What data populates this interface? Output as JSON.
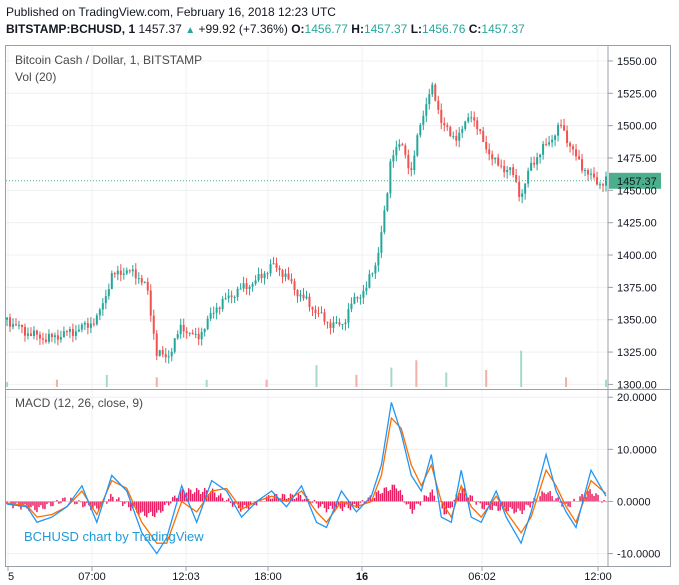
{
  "header": {
    "published": "Published on TradingView.com, February 16, 2018 12:23 UTC",
    "symbol": "BITSTAMP:BCHUSD, 1",
    "last": "1457.37",
    "change_arrow": "▲",
    "change": "+99.92 (+7.36%)",
    "o_label": "O:",
    "o_value": "1456.77",
    "h_label": "H:",
    "h_value": "1457.37",
    "l_label": "L:",
    "l_value": "1456.76",
    "c_label": "C:",
    "c_value": "1457.37"
  },
  "colors": {
    "up": "#26a69a",
    "down": "#ef5350",
    "volume_up": "#a8d8c8",
    "volume_down": "#f0b0a8",
    "volume_ma": "#ff9800",
    "macd_line": "#2196f3",
    "signal_line": "#ff6d00",
    "histogram": "#e91e63",
    "last_price_tag": "#4caf8c",
    "watermark": "#1e9bd8"
  },
  "chart_data": [
    {
      "type": "candlestick",
      "title": "Bitcoin Cash / Dollar, 1, BITSTAMP",
      "subtitle": "Vol (20)",
      "ylim": [
        1298,
        1560
      ],
      "y_ticks": [
        "1550.00",
        "1525.00",
        "1500.00",
        "1475.00",
        "1450.00",
        "1425.00",
        "1400.00",
        "1375.00",
        "1350.00",
        "1325.00",
        "1300.00"
      ],
      "x_ticks": [
        "5",
        "07:00",
        "12:03",
        "18:00",
        "16",
        "06:02",
        "12:00"
      ],
      "last_price_label": "1457.37",
      "last_price": 1457.37,
      "series": [
        {
          "name": "Price",
          "x": [
            0,
            20,
            40,
            70,
            90,
            105,
            115,
            130,
            140,
            150,
            160,
            175,
            190,
            210,
            230,
            250,
            265,
            275,
            290,
            305,
            320,
            335,
            345,
            360,
            370,
            380,
            385,
            395,
            405,
            415,
            425,
            435,
            445,
            455,
            465,
            475,
            490,
            505,
            515,
            525,
            535,
            545,
            555,
            570,
            585,
            595,
            600
          ],
          "values": [
            1350,
            1340,
            1335,
            1342,
            1350,
            1383,
            1388,
            1385,
            1375,
            1325,
            1320,
            1345,
            1335,
            1360,
            1372,
            1380,
            1392,
            1388,
            1372,
            1360,
            1348,
            1345,
            1362,
            1375,
            1395,
            1440,
            1480,
            1485,
            1465,
            1505,
            1530,
            1505,
            1490,
            1495,
            1510,
            1490,
            1470,
            1465,
            1445,
            1470,
            1480,
            1490,
            1500,
            1475,
            1460,
            1455,
            1457
          ]
        }
      ],
      "volume": {
        "x": [
          0,
          50,
          100,
          150,
          200,
          260,
          310,
          350,
          385,
          410,
          440,
          480,
          515,
          560,
          600
        ],
        "values": [
          2,
          3,
          5,
          4,
          3,
          3,
          9,
          5,
          8,
          11,
          6,
          7,
          15,
          4,
          3
        ],
        "ylim": [
          0,
          40
        ]
      }
    },
    {
      "type": "line",
      "title": "MACD (12, 26, close, 9)",
      "ylim": [
        -12,
        21
      ],
      "y_ticks": [
        "20.0000",
        "10.0000",
        "0.0000",
        "-10.0000"
      ],
      "series": [
        {
          "name": "MACD",
          "x": [
            0,
            20,
            30,
            45,
            60,
            75,
            90,
            105,
            120,
            135,
            150,
            160,
            175,
            190,
            205,
            220,
            235,
            250,
            265,
            280,
            295,
            310,
            320,
            335,
            350,
            365,
            375,
            385,
            395,
            405,
            415,
            425,
            435,
            445,
            455,
            465,
            475,
            490,
            500,
            515,
            525,
            540,
            550,
            560,
            570,
            585,
            600
          ],
          "values": [
            -0.5,
            -1,
            -4,
            -3,
            -1,
            3,
            -4,
            5,
            2,
            -6,
            -10,
            -7,
            3,
            -4,
            4,
            2,
            -3,
            0,
            2,
            -1,
            3,
            -4,
            -5,
            2,
            -2,
            1,
            7,
            19,
            13,
            5,
            2,
            9,
            -3,
            -4,
            6,
            -3,
            -4,
            2,
            -3,
            -8,
            -2,
            9,
            2,
            -2,
            -5,
            6,
            1
          ]
        },
        {
          "name": "Signal",
          "x": [
            0,
            20,
            30,
            45,
            60,
            75,
            90,
            105,
            120,
            135,
            150,
            160,
            175,
            190,
            205,
            220,
            235,
            250,
            265,
            280,
            295,
            310,
            320,
            335,
            350,
            365,
            375,
            385,
            395,
            405,
            415,
            425,
            435,
            445,
            455,
            465,
            475,
            490,
            500,
            515,
            525,
            540,
            550,
            560,
            570,
            585,
            600
          ],
          "values": [
            -0.3,
            -0.8,
            -3,
            -2.5,
            -1,
            2,
            -2.5,
            4,
            2.5,
            -4,
            -8,
            -8,
            0,
            -2,
            2,
            2.5,
            -1.5,
            0,
            1,
            0,
            2,
            -2,
            -4,
            0,
            -1,
            0,
            5,
            16,
            14,
            7,
            3,
            7,
            0,
            -3,
            3,
            -1,
            -3,
            1,
            -2,
            -6,
            -3,
            6,
            3,
            -1,
            -4,
            4,
            1.5
          ]
        }
      ],
      "histogram": {
        "x": [
          0,
          30,
          60,
          90,
          105,
          135,
          150,
          175,
          205,
          235,
          265,
          295,
          320,
          350,
          375,
          390,
          405,
          425,
          440,
          455,
          475,
          500,
          515,
          540,
          560,
          585,
          600
        ],
        "values": [
          -0.5,
          -1.5,
          0.5,
          -1.5,
          1,
          -2.5,
          -2.5,
          2,
          2,
          -1.5,
          1,
          1,
          -1.5,
          -1,
          2,
          3,
          -2,
          2,
          -2.5,
          2.5,
          -1,
          -1.5,
          -2,
          2,
          -1,
          2,
          -0.5
        ]
      }
    }
  ],
  "watermark": "BCHUSD chart by TradingView"
}
